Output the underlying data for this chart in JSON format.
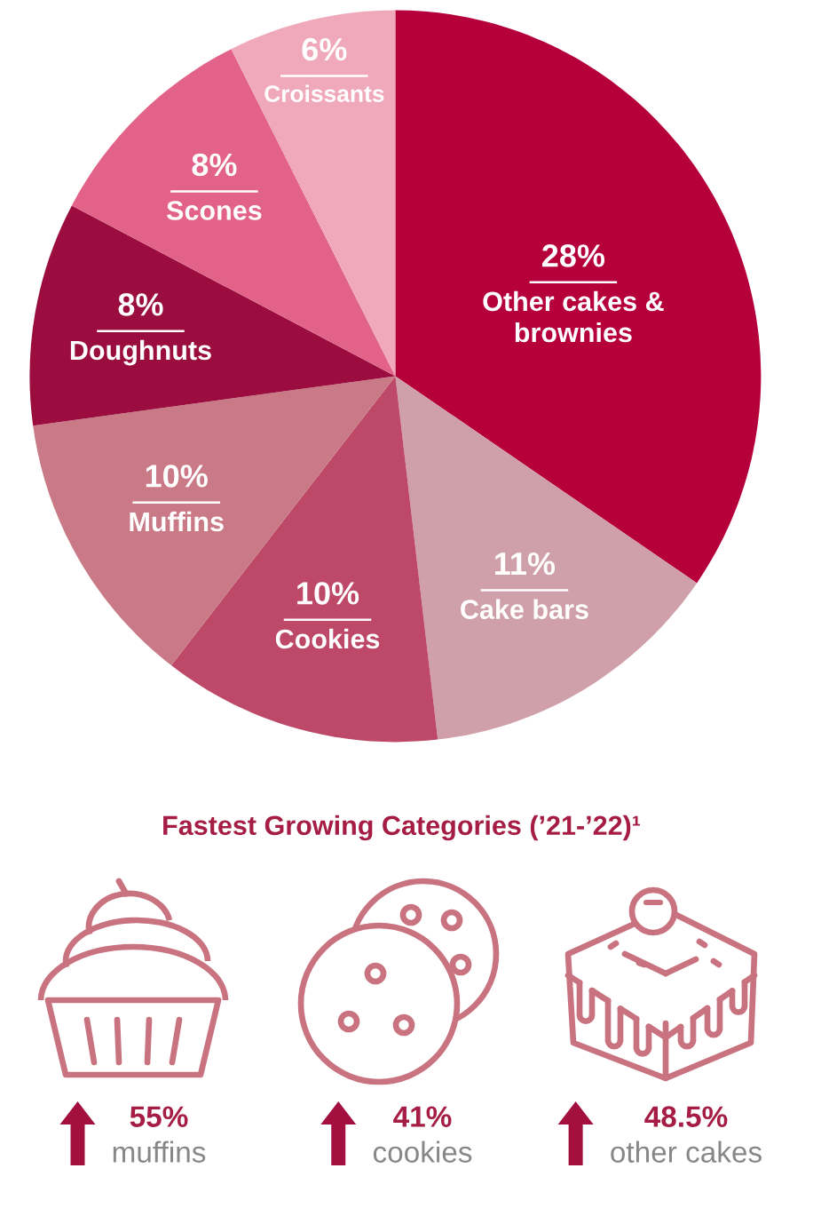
{
  "chart_data": [
    {
      "type": "pie",
      "categories": [
        "Other cakes & brownies",
        "Cake bars",
        "Cookies",
        "Muffins",
        "Doughnuts",
        "Scones",
        "Croissants"
      ],
      "values": [
        28,
        11,
        10,
        10,
        8,
        8,
        6
      ],
      "value_labels": [
        "28%",
        "11%",
        "10%",
        "10%",
        "8%",
        "8%",
        "6%"
      ],
      "colors": [
        "#b6003b",
        "#cfa0aa",
        "#bd4868",
        "#c97a86",
        "#9a0d3e",
        "#e2628a",
        "#efa9bb"
      ]
    },
    {
      "type": "other",
      "title": "Fastest Growing Categories (’21-’22)¹",
      "categories": [
        "muffins",
        "cookies",
        "other cakes"
      ],
      "value_labels": [
        "55%",
        "41%",
        "48.5%"
      ]
    }
  ]
}
